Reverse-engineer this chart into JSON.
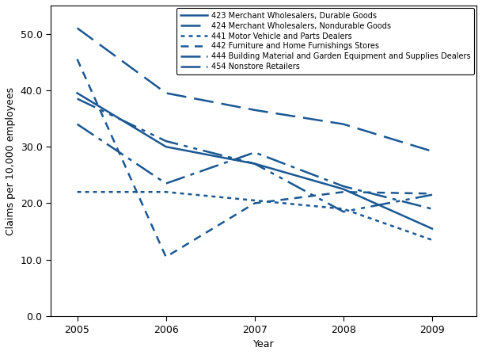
{
  "xlabel": "Year",
  "ylabel": "Claims per 10,000 employees",
  "years": [
    2005,
    2006,
    2007,
    2008,
    2009
  ],
  "series": [
    {
      "label": "423 Merchant Wholesalers, Durable Goods",
      "values": [
        39.5,
        30.0,
        27.0,
        22.5,
        15.5
      ],
      "dashes": []
    },
    {
      "label": "424 Merchant Wholesalers, Nondurable Goods",
      "values": [
        51.0,
        39.5,
        36.5,
        34.0,
        29.2
      ],
      "dashes": [
        10,
        4
      ]
    },
    {
      "label": "441 Motor Vehicle and Parts Dealers",
      "values": [
        22.0,
        22.0,
        20.5,
        19.0,
        13.5
      ],
      "dashes": [
        2,
        2
      ]
    },
    {
      "label": "442 Furniture and Home Furnishings Stores",
      "values": [
        45.5,
        10.5,
        20.0,
        22.0,
        21.7
      ],
      "dashes": [
        4,
        3
      ]
    },
    {
      "label": "444 Building Material and Garden Equipment and Supplies Dealers",
      "values": [
        34.0,
        23.5,
        29.0,
        23.0,
        19.0
      ],
      "dashes": [
        10,
        3,
        2,
        3
      ]
    },
    {
      "label": "454 Nonstore Retailers",
      "values": [
        38.5,
        31.0,
        27.0,
        18.5,
        21.5
      ],
      "dashes": [
        10,
        3,
        2,
        3,
        2,
        3
      ]
    }
  ],
  "color": "#1a5894",
  "linewidth": 1.8,
  "ylim": [
    0.0,
    55.0
  ],
  "yticks": [
    0.0,
    10.0,
    20.0,
    30.0,
    40.0,
    50.0
  ],
  "xlim": [
    2004.7,
    2009.5
  ],
  "xticks": [
    2005,
    2006,
    2007,
    2008,
    2009
  ],
  "legend_fontsize": 7.0,
  "legend_handlelength": 3.5,
  "axis_labelsize": 9,
  "tick_labelsize": 9,
  "fig_width": 6.09,
  "fig_height": 4.48,
  "dpi": 100
}
